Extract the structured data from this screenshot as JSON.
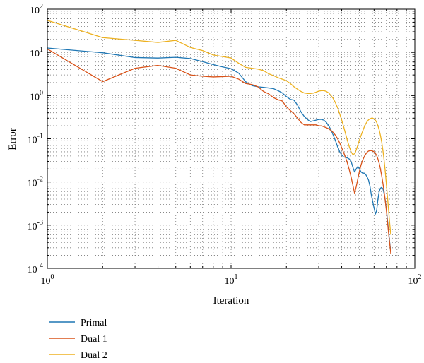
{
  "chart_data": {
    "type": "line",
    "xscale": "log",
    "yscale": "log",
    "xlim": [
      1,
      100
    ],
    "ylim": [
      0.0001,
      100
    ],
    "xlabel": "Iteration",
    "ylabel": "Error",
    "grid": true,
    "legend_position": "below-left",
    "x_ticks": [
      {
        "base": "10",
        "exp": "0"
      },
      {
        "base": "10",
        "exp": "1"
      },
      {
        "base": "10",
        "exp": "2"
      }
    ],
    "y_ticks": [
      {
        "base": "10",
        "exp": "-4"
      },
      {
        "base": "10",
        "exp": "-3"
      },
      {
        "base": "10",
        "exp": "-2"
      },
      {
        "base": "10",
        "exp": "-1"
      },
      {
        "base": "10",
        "exp": "0"
      },
      {
        "base": "10",
        "exp": "1"
      },
      {
        "base": "10",
        "exp": "2"
      }
    ],
    "series": [
      {
        "name": "Primal",
        "color": "#1f77b4",
        "points": [
          [
            1,
            12.6
          ],
          [
            2,
            9.8
          ],
          [
            3,
            7.6
          ],
          [
            4,
            7.4
          ],
          [
            5,
            7.7
          ],
          [
            6,
            7.2
          ],
          [
            7,
            6.1
          ],
          [
            8,
            5.2
          ],
          [
            9,
            4.6
          ],
          [
            10,
            4.2
          ],
          [
            11,
            3.3
          ],
          [
            12,
            2.1
          ],
          [
            13,
            1.7
          ],
          [
            14,
            1.6
          ],
          [
            15,
            1.55
          ],
          [
            16,
            1.5
          ],
          [
            17,
            1.45
          ],
          [
            18,
            1.3
          ],
          [
            19,
            1.15
          ],
          [
            20,
            0.95
          ],
          [
            21,
            0.82
          ],
          [
            22,
            0.78
          ],
          [
            23,
            0.6
          ],
          [
            24,
            0.42
          ],
          [
            25,
            0.33
          ],
          [
            26,
            0.28
          ],
          [
            27,
            0.25
          ],
          [
            28,
            0.26
          ],
          [
            29,
            0.27
          ],
          [
            30,
            0.28
          ],
          [
            31,
            0.28
          ],
          [
            32,
            0.27
          ],
          [
            33,
            0.24
          ],
          [
            34,
            0.2
          ],
          [
            35,
            0.16
          ],
          [
            36,
            0.12
          ],
          [
            37,
            0.09
          ],
          [
            38,
            0.065
          ],
          [
            39,
            0.05
          ],
          [
            40,
            0.042
          ],
          [
            41,
            0.038
          ],
          [
            42,
            0.037
          ],
          [
            43,
            0.036
          ],
          [
            44,
            0.034
          ],
          [
            45,
            0.03
          ],
          [
            46,
            0.022
          ],
          [
            47,
            0.017
          ],
          [
            48,
            0.02
          ],
          [
            49,
            0.023
          ],
          [
            50,
            0.02
          ],
          [
            51,
            0.017
          ],
          [
            52,
            0.016
          ],
          [
            53,
            0.016
          ],
          [
            54,
            0.015
          ],
          [
            55,
            0.013
          ],
          [
            56,
            0.011
          ],
          [
            57,
            0.008
          ],
          [
            58,
            0.005
          ],
          [
            59,
            0.0035
          ],
          [
            60,
            0.0025
          ],
          [
            61,
            0.0018
          ],
          [
            62,
            0.0022
          ],
          [
            63,
            0.004
          ],
          [
            64,
            0.006
          ],
          [
            65,
            0.0072
          ],
          [
            66,
            0.0075
          ],
          [
            67,
            0.007
          ],
          [
            68,
            0.0055
          ],
          [
            69,
            0.0038
          ],
          [
            70,
            0.0024
          ],
          [
            71,
            0.0013
          ],
          [
            72,
            0.0007
          ],
          [
            73,
            0.0004
          ],
          [
            74,
            0.00024
          ]
        ]
      },
      {
        "name": "Dual 1",
        "color": "#d95319",
        "points": [
          [
            1,
            12.0
          ],
          [
            2,
            2.1
          ],
          [
            3,
            4.3
          ],
          [
            4,
            5.0
          ],
          [
            5,
            4.3
          ],
          [
            6,
            3.0
          ],
          [
            7,
            2.8
          ],
          [
            8,
            2.7
          ],
          [
            9,
            2.75
          ],
          [
            10,
            2.8
          ],
          [
            11,
            2.4
          ],
          [
            12,
            1.9
          ],
          [
            13,
            1.8
          ],
          [
            14,
            1.6
          ],
          [
            15,
            1.25
          ],
          [
            16,
            1.1
          ],
          [
            17,
            0.9
          ],
          [
            18,
            0.8
          ],
          [
            19,
            0.75
          ],
          [
            20,
            0.55
          ],
          [
            21,
            0.45
          ],
          [
            22,
            0.38
          ],
          [
            23,
            0.3
          ],
          [
            24,
            0.24
          ],
          [
            25,
            0.21
          ],
          [
            26,
            0.21
          ],
          [
            27,
            0.21
          ],
          [
            28,
            0.21
          ],
          [
            29,
            0.21
          ],
          [
            30,
            0.2
          ],
          [
            31,
            0.2
          ],
          [
            32,
            0.19
          ],
          [
            33,
            0.18
          ],
          [
            34,
            0.17
          ],
          [
            35,
            0.155
          ],
          [
            36,
            0.14
          ],
          [
            37,
            0.12
          ],
          [
            38,
            0.1
          ],
          [
            39,
            0.08
          ],
          [
            40,
            0.062
          ],
          [
            41,
            0.048
          ],
          [
            42,
            0.037
          ],
          [
            43,
            0.027
          ],
          [
            44,
            0.019
          ],
          [
            45,
            0.013
          ],
          [
            46,
            0.0085
          ],
          [
            47,
            0.0055
          ],
          [
            48,
            0.0078
          ],
          [
            49,
            0.012
          ],
          [
            50,
            0.018
          ],
          [
            51,
            0.025
          ],
          [
            52,
            0.032
          ],
          [
            53,
            0.038
          ],
          [
            54,
            0.044
          ],
          [
            55,
            0.049
          ],
          [
            56,
            0.052
          ],
          [
            57,
            0.053
          ],
          [
            58,
            0.053
          ],
          [
            59,
            0.052
          ],
          [
            60,
            0.05
          ],
          [
            61,
            0.046
          ],
          [
            62,
            0.041
          ],
          [
            63,
            0.034
          ],
          [
            64,
            0.027
          ],
          [
            65,
            0.02
          ],
          [
            66,
            0.014
          ],
          [
            67,
            0.0095
          ],
          [
            68,
            0.0062
          ],
          [
            69,
            0.0038
          ],
          [
            70,
            0.0022
          ],
          [
            71,
            0.0012
          ],
          [
            72,
            0.00065
          ],
          [
            73,
            0.00038
          ],
          [
            74,
            0.00022
          ]
        ]
      },
      {
        "name": "Dual 2",
        "color": "#edb120",
        "points": [
          [
            1,
            55
          ],
          [
            2,
            22
          ],
          [
            3,
            19
          ],
          [
            4,
            17
          ],
          [
            5,
            19
          ],
          [
            6,
            13
          ],
          [
            7,
            11
          ],
          [
            8,
            8.7
          ],
          [
            9,
            8.0
          ],
          [
            10,
            7.4
          ],
          [
            11,
            5.6
          ],
          [
            12,
            4.5
          ],
          [
            13,
            4.3
          ],
          [
            14,
            4.1
          ],
          [
            15,
            3.8
          ],
          [
            16,
            3.2
          ],
          [
            17,
            2.9
          ],
          [
            18,
            2.6
          ],
          [
            19,
            2.4
          ],
          [
            20,
            2.2
          ],
          [
            21,
            1.9
          ],
          [
            22,
            1.6
          ],
          [
            23,
            1.4
          ],
          [
            24,
            1.25
          ],
          [
            25,
            1.15
          ],
          [
            26,
            1.12
          ],
          [
            27,
            1.12
          ],
          [
            28,
            1.14
          ],
          [
            29,
            1.2
          ],
          [
            30,
            1.27
          ],
          [
            31,
            1.3
          ],
          [
            32,
            1.3
          ],
          [
            33,
            1.25
          ],
          [
            34,
            1.15
          ],
          [
            35,
            1.0
          ],
          [
            36,
            0.85
          ],
          [
            37,
            0.68
          ],
          [
            38,
            0.52
          ],
          [
            39,
            0.38
          ],
          [
            40,
            0.27
          ],
          [
            41,
            0.19
          ],
          [
            42,
            0.13
          ],
          [
            43,
            0.09
          ],
          [
            44,
            0.065
          ],
          [
            45,
            0.05
          ],
          [
            46,
            0.043
          ],
          [
            47,
            0.045
          ],
          [
            48,
            0.055
          ],
          [
            49,
            0.072
          ],
          [
            50,
            0.095
          ],
          [
            51,
            0.12
          ],
          [
            52,
            0.15
          ],
          [
            53,
            0.185
          ],
          [
            54,
            0.22
          ],
          [
            55,
            0.25
          ],
          [
            56,
            0.275
          ],
          [
            57,
            0.29
          ],
          [
            58,
            0.3
          ],
          [
            59,
            0.3
          ],
          [
            60,
            0.29
          ],
          [
            61,
            0.27
          ],
          [
            62,
            0.24
          ],
          [
            63,
            0.2
          ],
          [
            64,
            0.16
          ],
          [
            65,
            0.12
          ],
          [
            66,
            0.085
          ],
          [
            67,
            0.055
          ],
          [
            68,
            0.033
          ],
          [
            69,
            0.018
          ],
          [
            70,
            0.009
          ],
          [
            71,
            0.0045
          ],
          [
            72,
            0.0022
          ],
          [
            73,
            0.0011
          ],
          [
            74,
            0.0006
          ]
        ]
      }
    ]
  }
}
